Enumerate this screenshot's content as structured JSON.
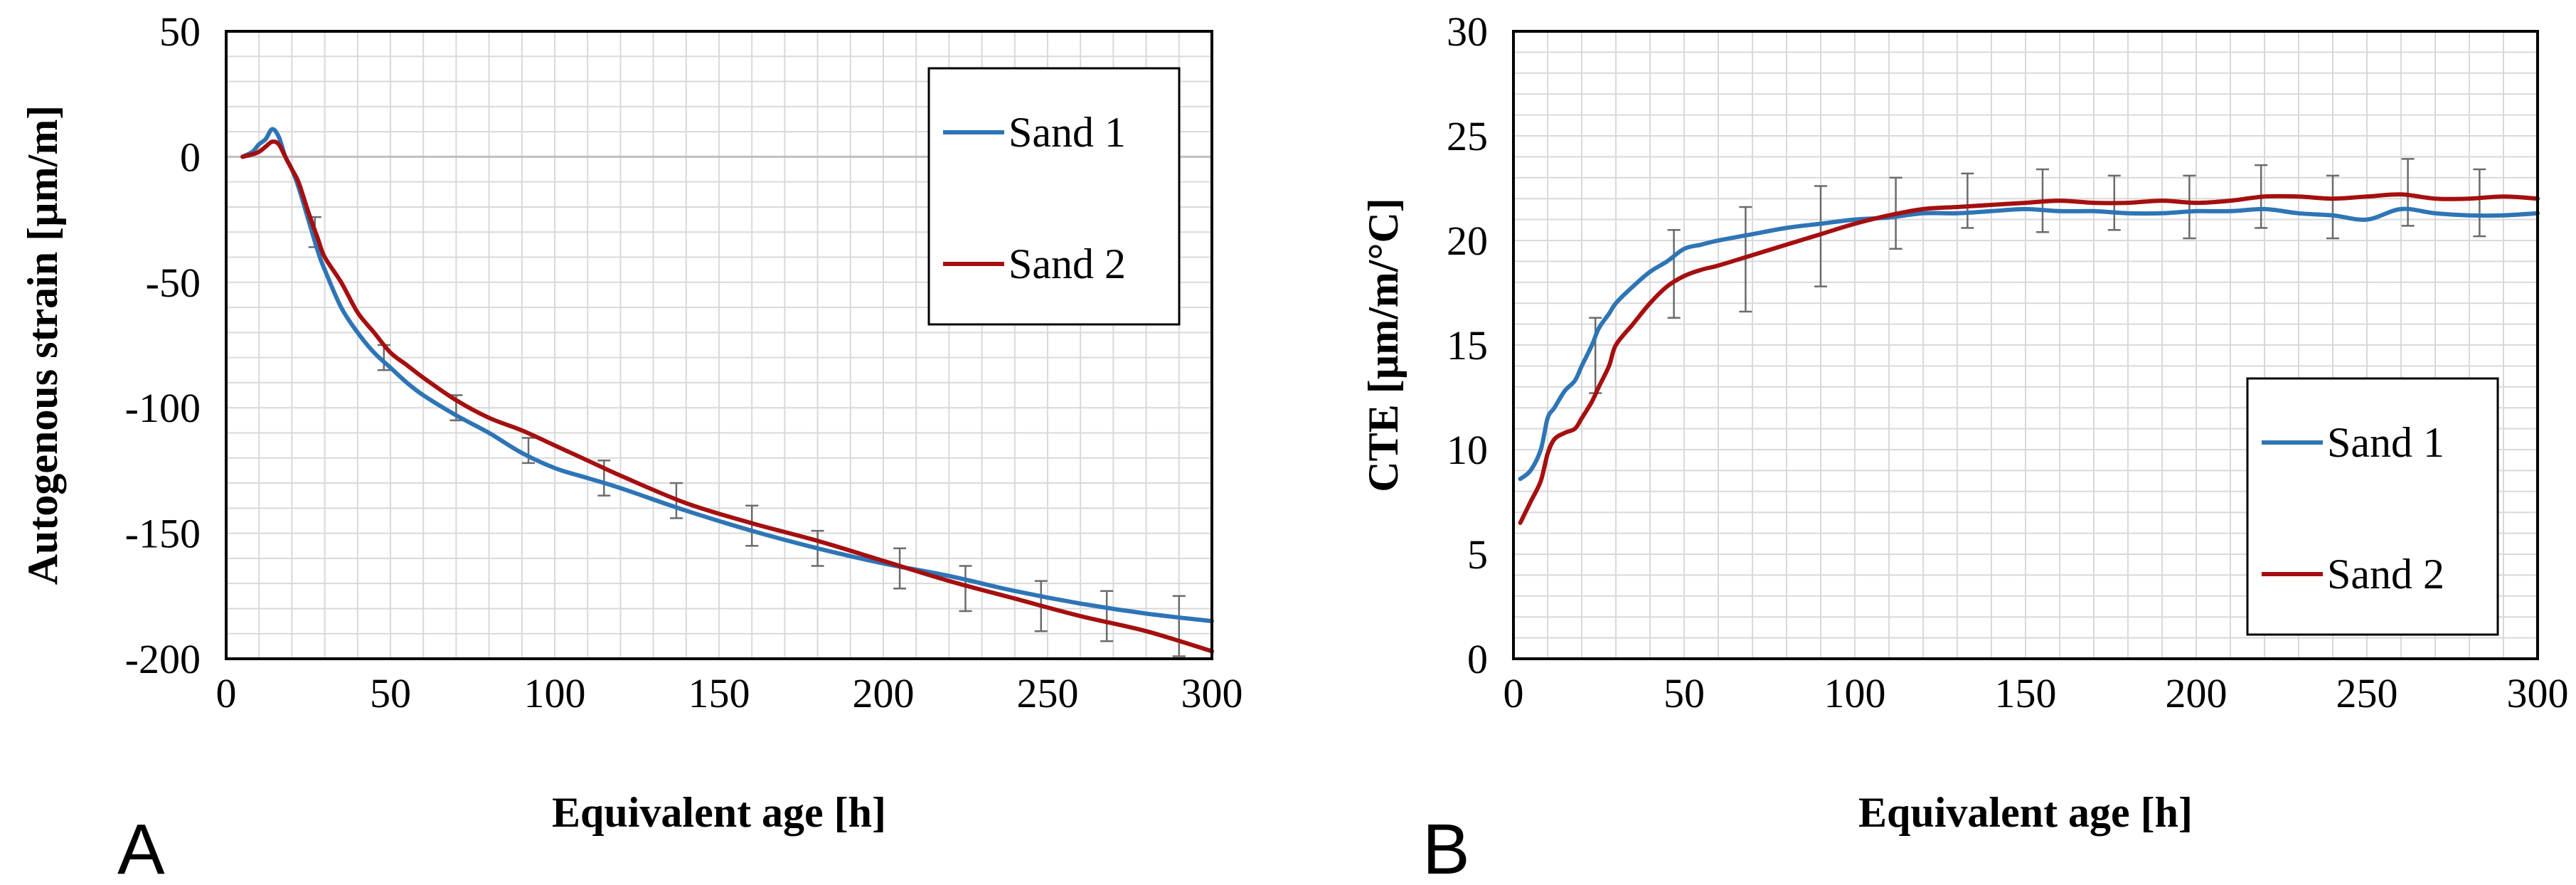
{
  "figure": {
    "panel_letters": [
      "A",
      "B"
    ]
  },
  "colors": {
    "sand1": "#2e75b6",
    "sand2": "#a50f0f"
  },
  "chart_data": [
    {
      "type": "line",
      "panel": "A",
      "xlabel": "Equivalent age [h]",
      "ylabel": "Autogenous strain [µm/m]",
      "xlim": [
        0,
        300
      ],
      "ylim": [
        -200,
        50
      ],
      "xticks": [
        0,
        50,
        100,
        150,
        200,
        250,
        300
      ],
      "yticks": [
        50,
        0,
        -50,
        -100,
        -150,
        -200
      ],
      "grid": true,
      "legend": {
        "position": "top-right",
        "entries": [
          "Sand 1",
          "Sand 2"
        ]
      },
      "series": [
        {
          "name": "Sand 1",
          "x": [
            5,
            8,
            10,
            12,
            14,
            16,
            18,
            20,
            22,
            25,
            28,
            30,
            35,
            40,
            45,
            50,
            55,
            60,
            70,
            80,
            90,
            100,
            110,
            120,
            140,
            160,
            180,
            200,
            220,
            240,
            260,
            280,
            300
          ],
          "y": [
            0,
            2,
            5,
            7,
            11,
            8,
            0,
            -5,
            -12,
            -25,
            -38,
            -45,
            -60,
            -70,
            -78,
            -84,
            -90,
            -95,
            -103,
            -110,
            -118,
            -124,
            -128,
            -132,
            -141,
            -149,
            -156,
            -162,
            -167,
            -173,
            -178,
            -182,
            -185
          ]
        },
        {
          "name": "Sand 2",
          "x": [
            5,
            8,
            10,
            12,
            14,
            16,
            18,
            20,
            22,
            25,
            28,
            30,
            35,
            40,
            45,
            50,
            55,
            60,
            70,
            80,
            90,
            100,
            110,
            120,
            140,
            160,
            180,
            200,
            220,
            240,
            260,
            280,
            300
          ],
          "y": [
            0,
            1,
            2,
            4,
            6,
            5,
            0,
            -5,
            -10,
            -22,
            -33,
            -40,
            -50,
            -62,
            -70,
            -78,
            -83,
            -88,
            -97,
            -104,
            -109,
            -115,
            -121,
            -127,
            -138,
            -146,
            -153,
            -161,
            -169,
            -176,
            -183,
            -189,
            -197
          ]
        }
      ],
      "error_bars": {
        "x": [
          27,
          48,
          70,
          92,
          115,
          137,
          160,
          180,
          205,
          225,
          248,
          268,
          290
        ],
        "y": [
          -30,
          -80,
          -100,
          -117,
          -128,
          -137,
          -147,
          -156,
          -164,
          -172,
          -179,
          -183,
          -187
        ],
        "err": [
          6,
          5,
          5,
          5,
          7,
          7,
          8,
          7,
          8,
          9,
          10,
          10,
          12
        ]
      }
    },
    {
      "type": "line",
      "panel": "B",
      "xlabel": "Equivalent age [h]",
      "ylabel": "CTE [µm/m/°C]",
      "xlim": [
        0,
        300
      ],
      "ylim": [
        0,
        30
      ],
      "xticks": [
        0,
        50,
        100,
        150,
        200,
        250,
        300
      ],
      "yticks": [
        0,
        5,
        10,
        15,
        20,
        25,
        30
      ],
      "grid": true,
      "legend": {
        "position": "bottom-right",
        "entries": [
          "Sand 1",
          "Sand 2"
        ]
      },
      "series": [
        {
          "name": "Sand 1",
          "x": [
            2,
            5,
            8,
            10,
            12,
            15,
            18,
            20,
            23,
            25,
            28,
            30,
            35,
            40,
            45,
            50,
            55,
            60,
            70,
            80,
            90,
            100,
            110,
            120,
            130,
            140,
            150,
            160,
            170,
            180,
            190,
            200,
            210,
            220,
            230,
            240,
            250,
            260,
            270,
            280,
            290,
            300
          ],
          "y": [
            8.6,
            9.0,
            10.0,
            11.5,
            12.0,
            12.8,
            13.3,
            14.0,
            15.0,
            15.8,
            16.5,
            17.0,
            17.8,
            18.5,
            19.0,
            19.6,
            19.8,
            20.0,
            20.3,
            20.6,
            20.8,
            21.0,
            21.1,
            21.3,
            21.3,
            21.4,
            21.5,
            21.4,
            21.4,
            21.3,
            21.3,
            21.4,
            21.4,
            21.5,
            21.3,
            21.2,
            21.0,
            21.5,
            21.3,
            21.2,
            21.2,
            21.3
          ]
        },
        {
          "name": "Sand 2",
          "x": [
            2,
            5,
            8,
            10,
            12,
            15,
            18,
            20,
            23,
            25,
            28,
            30,
            35,
            40,
            45,
            50,
            55,
            60,
            70,
            80,
            90,
            100,
            110,
            120,
            130,
            140,
            150,
            160,
            170,
            180,
            190,
            200,
            210,
            220,
            230,
            240,
            250,
            260,
            270,
            280,
            290,
            300
          ],
          "y": [
            6.5,
            7.5,
            8.5,
            9.8,
            10.5,
            10.8,
            11.0,
            11.5,
            12.3,
            13.0,
            14.0,
            15.0,
            16.0,
            17.0,
            17.8,
            18.3,
            18.6,
            18.8,
            19.3,
            19.8,
            20.3,
            20.8,
            21.2,
            21.5,
            21.6,
            21.7,
            21.8,
            21.9,
            21.8,
            21.8,
            21.9,
            21.8,
            21.9,
            22.1,
            22.1,
            22.0,
            22.1,
            22.2,
            22.0,
            22.0,
            22.1,
            22.0
          ]
        }
      ],
      "error_bars": {
        "x": [
          24,
          47,
          68,
          90,
          112,
          133,
          155,
          176,
          198,
          219,
          240,
          262,
          283
        ],
        "y": [
          14.5,
          18.4,
          19.1,
          20.2,
          21.3,
          21.9,
          21.9,
          21.8,
          21.6,
          22.1,
          21.6,
          22.3,
          21.8
        ],
        "err": [
          1.8,
          2.1,
          2.5,
          2.4,
          1.7,
          1.3,
          1.5,
          1.3,
          1.5,
          1.5,
          1.5,
          1.6,
          1.6
        ]
      }
    }
  ]
}
